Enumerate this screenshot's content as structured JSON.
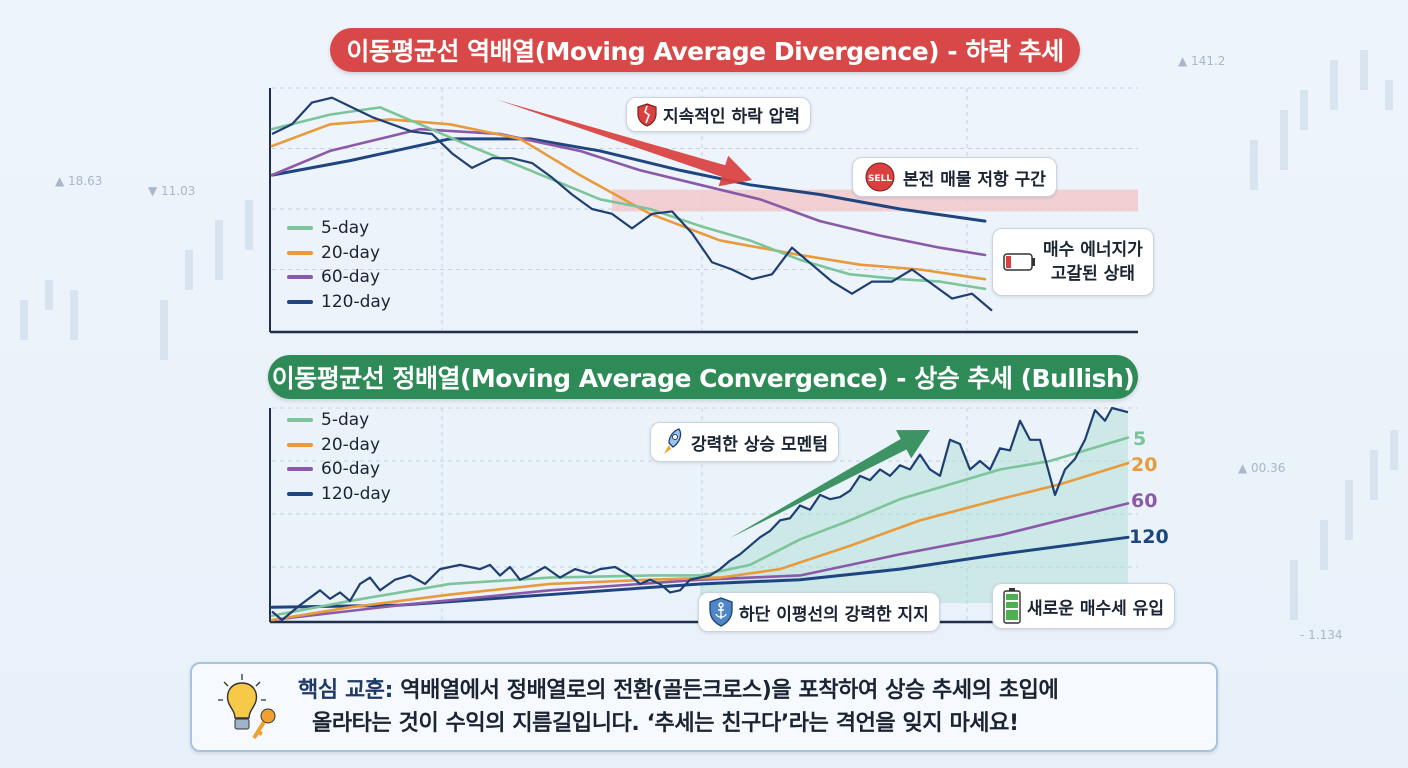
{
  "background": {
    "tickers": [
      "▲ 141.2",
      "▲ 18.63",
      "▼ 11.03",
      "▲ 00.36",
      "- 1.134"
    ]
  },
  "colors": {
    "ma5": "#7cc49a",
    "ma20": "#e89a3c",
    "ma60": "#8a5aa8",
    "ma120": "#1f4580",
    "price": "#1f3f73",
    "bear_banner": "#d94848",
    "bull_banner": "#2e8b57",
    "resistance": "#f4c6c8",
    "bear_arrow": "#d9403e",
    "bull_arrow": "#2e8b57"
  },
  "chart_data": [
    {
      "type": "line",
      "title": "이동평균선 역배열(Moving Average Divergence) - 하락 추세",
      "trend": "down",
      "grid": true,
      "legend_placement": "left",
      "legend": [
        "5-day",
        "20-day",
        "60-day",
        "120-day"
      ],
      "price": [
        [
          0,
          81
        ],
        [
          2,
          85
        ],
        [
          4,
          94
        ],
        [
          6,
          96
        ],
        [
          8,
          92
        ],
        [
          10,
          88
        ],
        [
          12,
          85
        ],
        [
          14,
          82
        ],
        [
          16,
          81
        ],
        [
          18,
          73
        ],
        [
          20,
          67
        ],
        [
          22,
          71
        ],
        [
          24,
          71
        ],
        [
          26,
          69
        ],
        [
          28,
          63
        ],
        [
          30,
          56
        ],
        [
          32,
          50
        ],
        [
          34,
          48
        ],
        [
          36,
          42
        ],
        [
          38,
          48
        ],
        [
          40,
          49
        ],
        [
          42,
          40
        ],
        [
          44,
          28
        ],
        [
          46,
          25
        ],
        [
          48,
          21
        ],
        [
          50,
          23
        ],
        [
          52,
          34
        ],
        [
          54,
          27
        ],
        [
          56,
          20
        ],
        [
          58,
          15
        ],
        [
          60,
          20
        ],
        [
          62,
          20
        ],
        [
          64,
          25
        ],
        [
          66,
          19
        ],
        [
          68,
          13
        ],
        [
          70,
          15
        ],
        [
          72,
          8
        ]
      ],
      "series": [
        {
          "name": "5-day",
          "color_key": "ma5",
          "points": [
            [
              0,
              83
            ],
            [
              5.8,
              89
            ],
            [
              10.8,
              92
            ],
            [
              14.8,
              85
            ],
            [
              19.8,
              76
            ],
            [
              25.8,
              66
            ],
            [
              32.8,
              54
            ],
            [
              37.8,
              50
            ],
            [
              42.8,
              43
            ],
            [
              47.8,
              37
            ],
            [
              52.8,
              29
            ],
            [
              57.8,
              23
            ],
            [
              62.8,
              21
            ],
            [
              66.8,
              20
            ],
            [
              71.3,
              17
            ]
          ]
        },
        {
          "name": "20-day",
          "color_key": "ma20",
          "points": [
            [
              0,
              76
            ],
            [
              5.8,
              85
            ],
            [
              11.8,
              87
            ],
            [
              17.8,
              85
            ],
            [
              24.8,
              79
            ],
            [
              30.8,
              64
            ],
            [
              37.8,
              48
            ],
            [
              44.8,
              37
            ],
            [
              52.8,
              31
            ],
            [
              58.8,
              27
            ],
            [
              64.8,
              25
            ],
            [
              71.3,
              21
            ]
          ]
        },
        {
          "name": "60-day",
          "color_key": "ma60",
          "points": [
            [
              0,
              64
            ],
            [
              5.8,
              74
            ],
            [
              14.8,
              83
            ],
            [
              22.8,
              81
            ],
            [
              30.8,
              74
            ],
            [
              36.8,
              66
            ],
            [
              42.8,
              60
            ],
            [
              48.8,
              54
            ],
            [
              54.8,
              45
            ],
            [
              60.8,
              39
            ],
            [
              66.8,
              34
            ],
            [
              71.3,
              31
            ]
          ]
        },
        {
          "name": "120-day",
          "color_key": "ma120",
          "points": [
            [
              0,
              64
            ],
            [
              7.8,
              70
            ],
            [
              17.8,
              79
            ],
            [
              25.8,
              79
            ],
            [
              32.8,
              74
            ],
            [
              40.8,
              66
            ],
            [
              47.8,
              60
            ],
            [
              54.8,
              56
            ],
            [
              62.8,
              50
            ],
            [
              71.3,
              45
            ]
          ]
        }
      ],
      "resistance_band": {
        "x_from": 34,
        "y_from": 49,
        "y_to": 58
      },
      "annotations": {
        "pressure": "지속적인 하락 압력",
        "resistance": "본전 매물 저항 구간",
        "sell_badge": "SELL",
        "exhausted": [
          "매수 에너지가",
          "고갈된 상태"
        ]
      }
    },
    {
      "type": "line",
      "title": "이동평균선 정배열(Moving Average Convergence) - 상승 추세 (Bullish)",
      "trend": "up",
      "grid": true,
      "legend_placement": "top-left",
      "legend": [
        "5-day",
        "20-day",
        "60-day",
        "120-day"
      ],
      "end_labels": [
        "5",
        "20",
        "60",
        "120"
      ],
      "price": [
        [
          0,
          4
        ],
        [
          1,
          0
        ],
        [
          2.8,
          7
        ],
        [
          4.8,
          14
        ],
        [
          5.8,
          10
        ],
        [
          6.8,
          13
        ],
        [
          7.8,
          9
        ],
        [
          8.8,
          17
        ],
        [
          9.8,
          20
        ],
        [
          10.8,
          14
        ],
        [
          12.3,
          19
        ],
        [
          13.8,
          21
        ],
        [
          15.3,
          17
        ],
        [
          16.8,
          24
        ],
        [
          18.8,
          26
        ],
        [
          20.8,
          24
        ],
        [
          21.8,
          26
        ],
        [
          22.8,
          21
        ],
        [
          23.8,
          25
        ],
        [
          24.8,
          19
        ],
        [
          25.8,
          21
        ],
        [
          27.3,
          25
        ],
        [
          28.8,
          20
        ],
        [
          30.3,
          24
        ],
        [
          31.8,
          22
        ],
        [
          32.8,
          24
        ],
        [
          34.3,
          25
        ],
        [
          35.8,
          21
        ],
        [
          36.8,
          17
        ],
        [
          37.8,
          19
        ],
        [
          38.8,
          17
        ],
        [
          39.8,
          13
        ],
        [
          40.8,
          14
        ],
        [
          41.8,
          19
        ],
        [
          42.8,
          20
        ],
        [
          43.8,
          21
        ],
        [
          44.8,
          24
        ],
        [
          45.8,
          28
        ],
        [
          46.8,
          31
        ],
        [
          47.8,
          35
        ],
        [
          48.8,
          39
        ],
        [
          49.8,
          42
        ],
        [
          50.8,
          47
        ],
        [
          51.8,
          48
        ],
        [
          52.8,
          54
        ],
        [
          53.8,
          52
        ],
        [
          54.8,
          59
        ],
        [
          55.8,
          57
        ],
        [
          56.8,
          58
        ],
        [
          57.8,
          61
        ],
        [
          58.8,
          68
        ],
        [
          59.8,
          66
        ],
        [
          60.8,
          71
        ],
        [
          61.8,
          68
        ],
        [
          62.8,
          73
        ],
        [
          63.8,
          71
        ],
        [
          64.8,
          78
        ],
        [
          65.8,
          71
        ],
        [
          66.8,
          68
        ],
        [
          67.8,
          85
        ],
        [
          68.8,
          83
        ],
        [
          69.8,
          71
        ],
        [
          70.8,
          75
        ],
        [
          71.8,
          71
        ],
        [
          72.8,
          81
        ],
        [
          73.8,
          80
        ],
        [
          74.8,
          94
        ],
        [
          75.8,
          85
        ],
        [
          76.8,
          85
        ],
        [
          78.3,
          59
        ],
        [
          79.3,
          71
        ],
        [
          80.3,
          76
        ],
        [
          81.3,
          85
        ],
        [
          82.3,
          99
        ],
        [
          83.3,
          94
        ],
        [
          84,
          100
        ],
        [
          85.6,
          98
        ]
      ],
      "series": [
        {
          "name": "5-day",
          "color_key": "ma5",
          "points": [
            [
              0,
              2
            ],
            [
              7.8,
              9
            ],
            [
              17.8,
              17
            ],
            [
              27.8,
              20
            ],
            [
              37.8,
              21
            ],
            [
              42.8,
              21
            ],
            [
              47.8,
              26
            ],
            [
              52.8,
              38
            ],
            [
              57.8,
              47
            ],
            [
              62.8,
              57
            ],
            [
              67.8,
              64
            ],
            [
              72.8,
              71
            ],
            [
              77.8,
              75
            ],
            [
              85.6,
              86
            ]
          ]
        },
        {
          "name": "20-day",
          "color_key": "ma20",
          "points": [
            [
              0,
              0
            ],
            [
              7.8,
              6
            ],
            [
              17.8,
              12
            ],
            [
              27.8,
              17
            ],
            [
              37.8,
              19
            ],
            [
              44.8,
              20
            ],
            [
              50.8,
              24
            ],
            [
              57.8,
              35
            ],
            [
              64.8,
              47
            ],
            [
              72.8,
              57
            ],
            [
              78.8,
              64
            ],
            [
              85.6,
              74
            ]
          ]
        },
        {
          "name": "60-day",
          "color_key": "ma60",
          "points": [
            [
              0,
              0
            ],
            [
              12.8,
              7
            ],
            [
              27.8,
              14
            ],
            [
              42.8,
              19
            ],
            [
              52.8,
              21
            ],
            [
              62.8,
              31
            ],
            [
              72.8,
              40
            ],
            [
              85.6,
              55
            ]
          ]
        },
        {
          "name": "120-day",
          "color_key": "ma120",
          "points": [
            [
              0,
              6
            ],
            [
              12.8,
              7
            ],
            [
              27.8,
              12
            ],
            [
              42.8,
              17
            ],
            [
              52.8,
              19
            ],
            [
              62.8,
              24
            ],
            [
              72.8,
              31
            ],
            [
              85.6,
              39
            ]
          ]
        }
      ],
      "annotations": {
        "momentum": "강력한 상승 모멘텀",
        "support": "하단 이평선의 강력한 지지",
        "inflow": "새로운 매수세 유입"
      }
    }
  ],
  "lesson": {
    "label": "핵심 교훈:",
    "line1": " 역배열에서 정배열로의 전환(골든크로스)을 포착하여 상승 추세의 초입에",
    "line2": "올라타는 것이 수익의 지름길입니다. ‘추세는 친구다’라는 격언을 잊지 마세요!"
  }
}
